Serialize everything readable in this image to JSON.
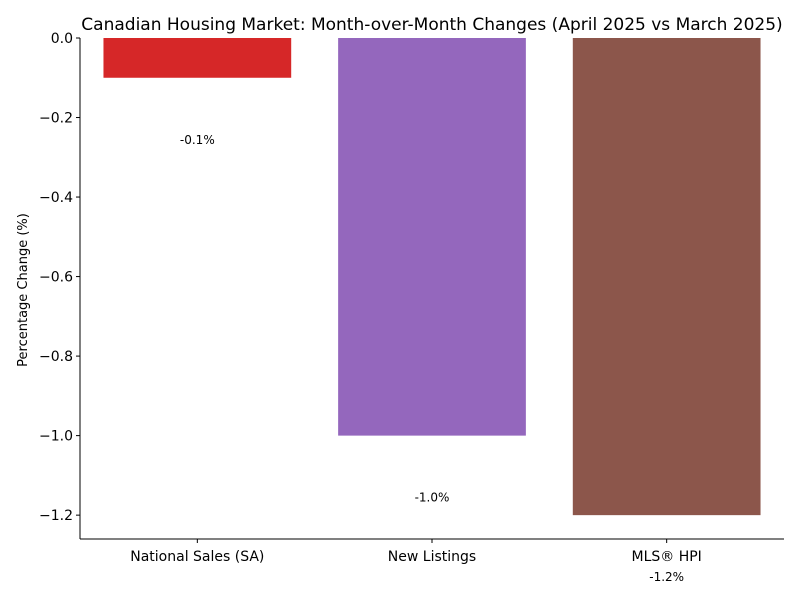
{
  "chart_data": {
    "type": "bar",
    "title": "Canadian Housing Market: Month-over-Month Changes (April 2025 vs March 2025)",
    "xlabel": "",
    "ylabel": "Percentage Change (%)",
    "categories": [
      "National Sales (SA)",
      "New Listings",
      "MLS® HPI"
    ],
    "values": [
      -0.1,
      -1.0,
      -1.2
    ],
    "data_labels": [
      "-0.1%",
      "-1.0%",
      "-1.2%"
    ],
    "colors": [
      "#d62728",
      "#9467bd",
      "#8c564b"
    ],
    "ylim": [
      -1.26,
      0.0
    ],
    "yticks": [
      0.0,
      -0.2,
      -0.4,
      -0.6,
      -0.8,
      -1.0,
      -1.2
    ],
    "ytick_labels": [
      "0.0",
      "−0.2",
      "−0.4",
      "−0.6",
      "−0.8",
      "−1.0",
      "−1.2"
    ],
    "grid": false,
    "legend": "none"
  }
}
